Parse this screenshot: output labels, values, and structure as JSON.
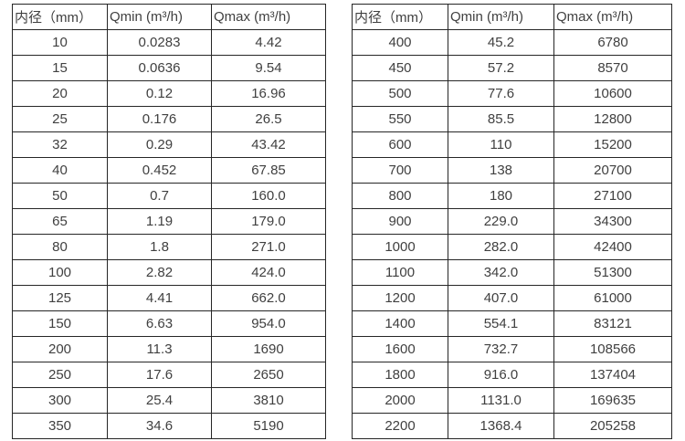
{
  "page": {
    "background_color": "#ffffff",
    "text_color": "#404040",
    "border_color": "#262626"
  },
  "tables": [
    {
      "name": "flow-table-small-diameters",
      "headers": [
        "内径（mm）",
        "Qmin (m³/h)",
        "Qmax (m³/h)"
      ],
      "rows": [
        [
          "10",
          "0.0283",
          "4.42"
        ],
        [
          "15",
          "0.0636",
          "9.54"
        ],
        [
          "20",
          "0.12",
          "16.96"
        ],
        [
          "25",
          "0.176",
          "26.5"
        ],
        [
          "32",
          "0.29",
          "43.42"
        ],
        [
          "40",
          "0.452",
          "67.85"
        ],
        [
          "50",
          "0.7",
          "160.0"
        ],
        [
          "65",
          "1.19",
          "179.0"
        ],
        [
          "80",
          "1.8",
          "271.0"
        ],
        [
          "100",
          "2.82",
          "424.0"
        ],
        [
          "125",
          "4.41",
          "662.0"
        ],
        [
          "150",
          "6.63",
          "954.0"
        ],
        [
          "200",
          "11.3",
          "1690"
        ],
        [
          "250",
          "17.6",
          "2650"
        ],
        [
          "300",
          "25.4",
          "3810"
        ],
        [
          "350",
          "34.6",
          "5190"
        ]
      ]
    },
    {
      "name": "flow-table-large-diameters",
      "headers": [
        "内径（mm）",
        "Qmin (m³/h)",
        "Qmax (m³/h)"
      ],
      "rows": [
        [
          "400",
          "45.2",
          "6780"
        ],
        [
          "450",
          "57.2",
          "8570"
        ],
        [
          "500",
          "77.6",
          "10600"
        ],
        [
          "550",
          "85.5",
          "12800"
        ],
        [
          "600",
          "110",
          "15200"
        ],
        [
          "700",
          "138",
          "20700"
        ],
        [
          "800",
          "180",
          "27100"
        ],
        [
          "900",
          "229.0",
          "34300"
        ],
        [
          "1000",
          "282.0",
          "42400"
        ],
        [
          "1100",
          "342.0",
          "51300"
        ],
        [
          "1200",
          "407.0",
          "61000"
        ],
        [
          "1400",
          "554.1",
          "83121"
        ],
        [
          "1600",
          "732.7",
          "108566"
        ],
        [
          "1800",
          "916.0",
          "137404"
        ],
        [
          "2000",
          "1131.0",
          "169635"
        ],
        [
          "2200",
          "1368.4",
          "205258"
        ]
      ]
    }
  ]
}
